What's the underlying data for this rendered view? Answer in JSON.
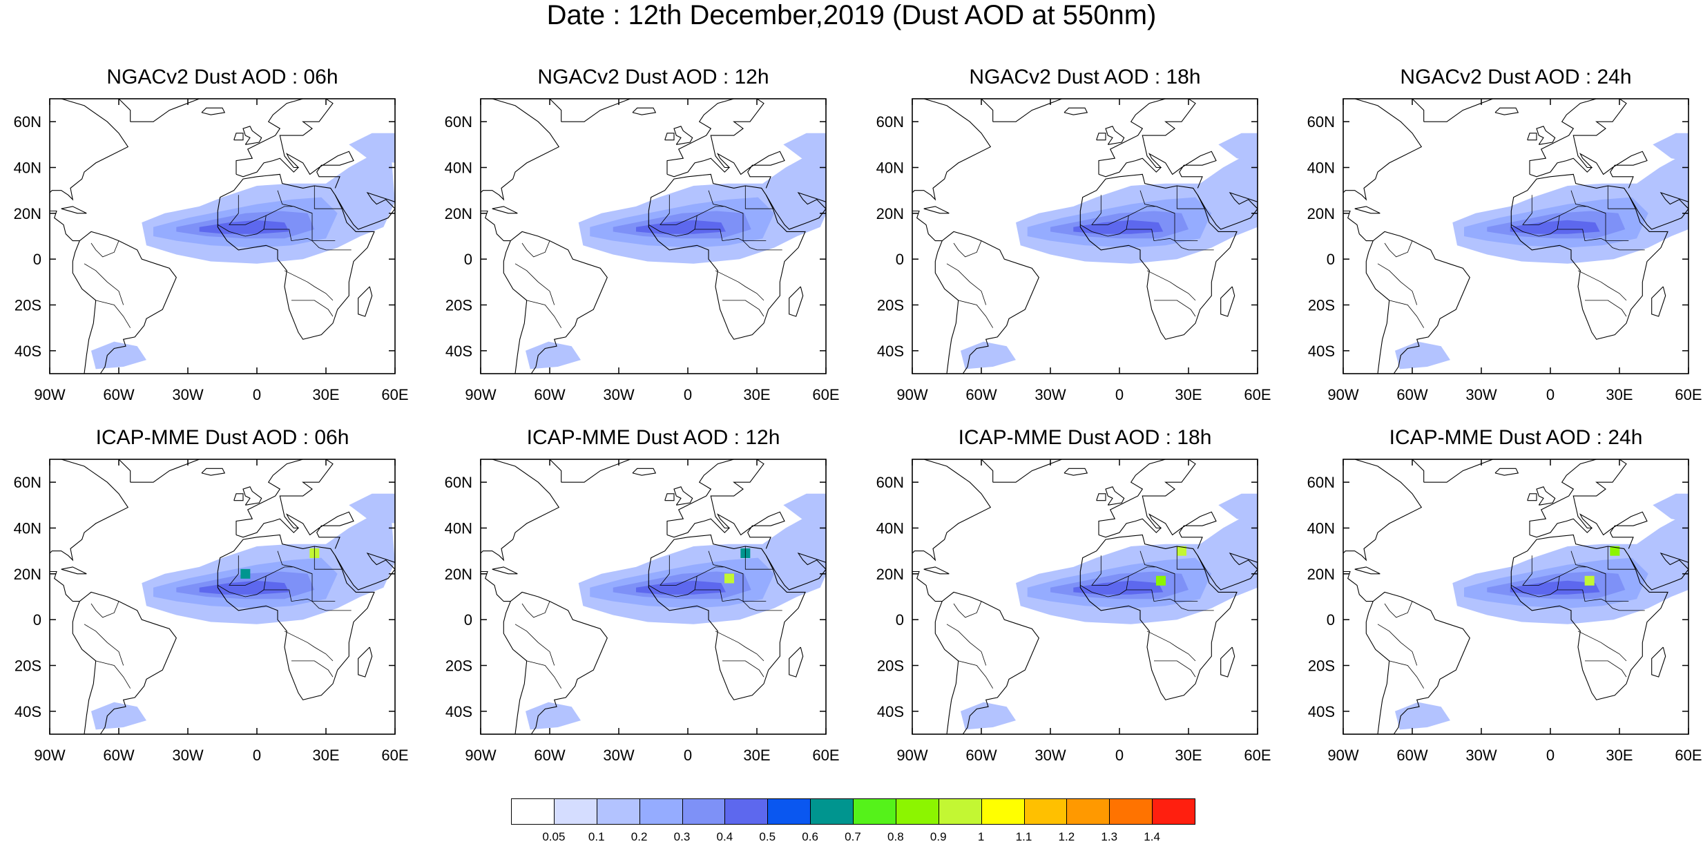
{
  "title": "Date : 12th December,2019 (Dust AOD at 550nm)",
  "map": {
    "lon_ticks": [
      "90W",
      "60W",
      "30W",
      "0",
      "30E",
      "60E"
    ],
    "lat_ticks": [
      "60N",
      "40N",
      "20N",
      "0",
      "20S",
      "40S"
    ],
    "lon_range": [
      -90,
      60
    ],
    "lat_range": [
      -50,
      70
    ],
    "rows": [
      {
        "model": "NGACv2",
        "panels": [
          {
            "title": "NGACv2 Dust AOD : 06h",
            "hotspots": []
          },
          {
            "title": "NGACv2 Dust AOD : 12h",
            "hotspots": []
          },
          {
            "title": "NGACv2 Dust AOD : 18h",
            "hotspots": []
          },
          {
            "title": "NGACv2 Dust AOD : 24h",
            "hotspots": []
          }
        ]
      },
      {
        "model": "ICAP-MME",
        "panels": [
          {
            "title": "ICAP-MME Dust AOD : 06h",
            "hotspots": [
              {
                "lon": 25,
                "lat": 29,
                "level": "0.9"
              },
              {
                "lon": -5,
                "lat": 20,
                "level": "0.6"
              }
            ]
          },
          {
            "title": "ICAP-MME Dust AOD : 12h",
            "hotspots": [
              {
                "lon": 18,
                "lat": 18,
                "level": "0.9"
              },
              {
                "lon": 25,
                "lat": 29,
                "level": "0.6"
              }
            ]
          },
          {
            "title": "ICAP-MME Dust AOD : 18h",
            "hotspots": [
              {
                "lon": 27,
                "lat": 30,
                "level": "0.9"
              },
              {
                "lon": 18,
                "lat": 17,
                "level": "0.8"
              }
            ]
          },
          {
            "title": "ICAP-MME Dust AOD : 24h",
            "hotspots": [
              {
                "lon": 17,
                "lat": 17,
                "level": "0.9"
              },
              {
                "lon": 28,
                "lat": 30,
                "level": "0.8"
              }
            ]
          }
        ]
      }
    ]
  },
  "colorbar": {
    "labels": [
      "0.05",
      "0.1",
      "0.2",
      "0.3",
      "0.4",
      "0.5",
      "0.6",
      "0.7",
      "0.8",
      "0.9",
      "1",
      "1.1",
      "1.2",
      "1.3",
      "1.4"
    ],
    "colors": [
      "#ffffff",
      "#d5ddff",
      "#b3c3ff",
      "#95acff",
      "#7e91f7",
      "#5d68ee",
      "#0a57f0",
      "#00958f",
      "#55f21a",
      "#8cf500",
      "#c3f733",
      "#ffff00",
      "#ffc000",
      "#ff9900",
      "#ff7300",
      "#ff1f0f"
    ]
  }
}
